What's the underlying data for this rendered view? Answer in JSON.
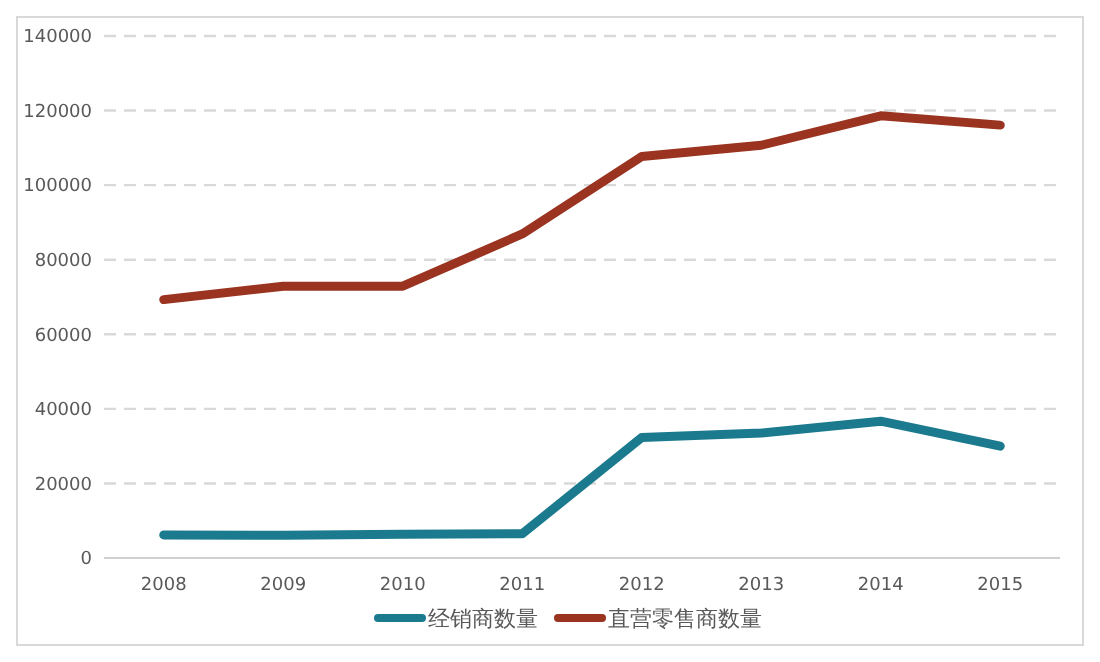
{
  "chart_data": {
    "type": "line",
    "categories": [
      "2008",
      "2009",
      "2010",
      "2011",
      "2012",
      "2013",
      "2014",
      "2015"
    ],
    "series": [
      {
        "name": "经销商数量",
        "color": "#1b7a8e",
        "values": [
          6200,
          6100,
          6400,
          6500,
          32300,
          33500,
          36700,
          30000
        ]
      },
      {
        "name": "直营零售商数量",
        "color": "#9a3320",
        "values": [
          69300,
          72900,
          72900,
          86900,
          107700,
          110700,
          118600,
          116100
        ]
      }
    ],
    "ylim": [
      0,
      140000
    ],
    "yticks": [
      0,
      20000,
      40000,
      60000,
      80000,
      100000,
      120000,
      140000
    ],
    "grid": "y",
    "legend": "bottom",
    "line_style": "solid",
    "marker": "none"
  }
}
